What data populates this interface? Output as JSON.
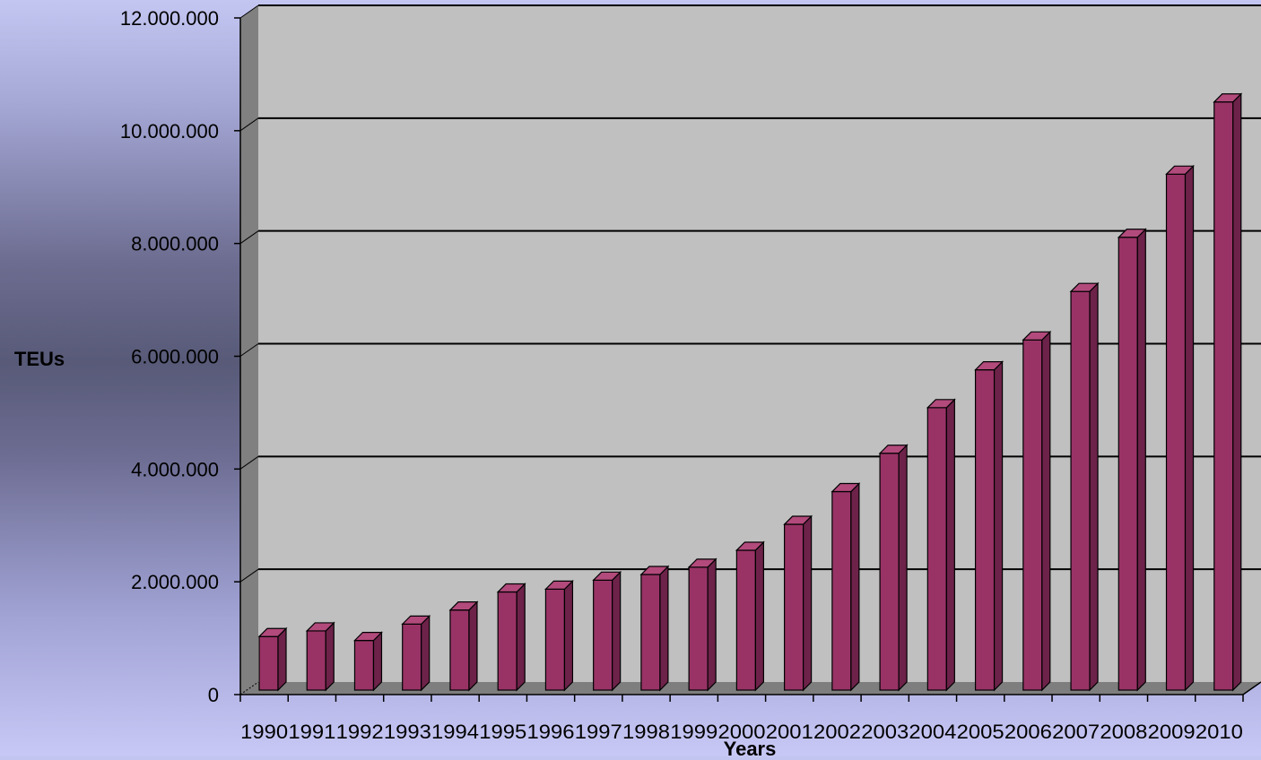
{
  "chart_data": {
    "type": "bar",
    "title": "",
    "xlabel": "Years",
    "ylabel": "TEUs",
    "ylim": [
      0,
      12000000
    ],
    "yticks": [
      0,
      2000000,
      4000000,
      6000000,
      8000000,
      10000000,
      12000000
    ],
    "ytick_labels": [
      "0",
      "2.000.000",
      "4.000.000",
      "6.000.000",
      "8.000.000",
      "10.000.000",
      "12.000.000"
    ],
    "categories": [
      "1990",
      "1991",
      "1992",
      "1993",
      "1994",
      "1995",
      "1996",
      "1997",
      "1998",
      "1999",
      "2000",
      "2001",
      "2002",
      "2003",
      "2004",
      "2005",
      "2006",
      "2007",
      "2008",
      "2009",
      "2010"
    ],
    "values": [
      950000,
      1050000,
      880000,
      1170000,
      1420000,
      1740000,
      1790000,
      1950000,
      2050000,
      2180000,
      2480000,
      2940000,
      3520000,
      4200000,
      5010000,
      5680000,
      6210000,
      7070000,
      8030000,
      9150000,
      10430000
    ],
    "grid": true,
    "legend": "none",
    "colors": {
      "bar_front": "#993366",
      "bar_side": "#6d2249",
      "bar_top": "#b24a7c",
      "plot_bg": "#c0c0c0",
      "side_wall": "#808080",
      "floor": "#7e7e7e"
    }
  }
}
